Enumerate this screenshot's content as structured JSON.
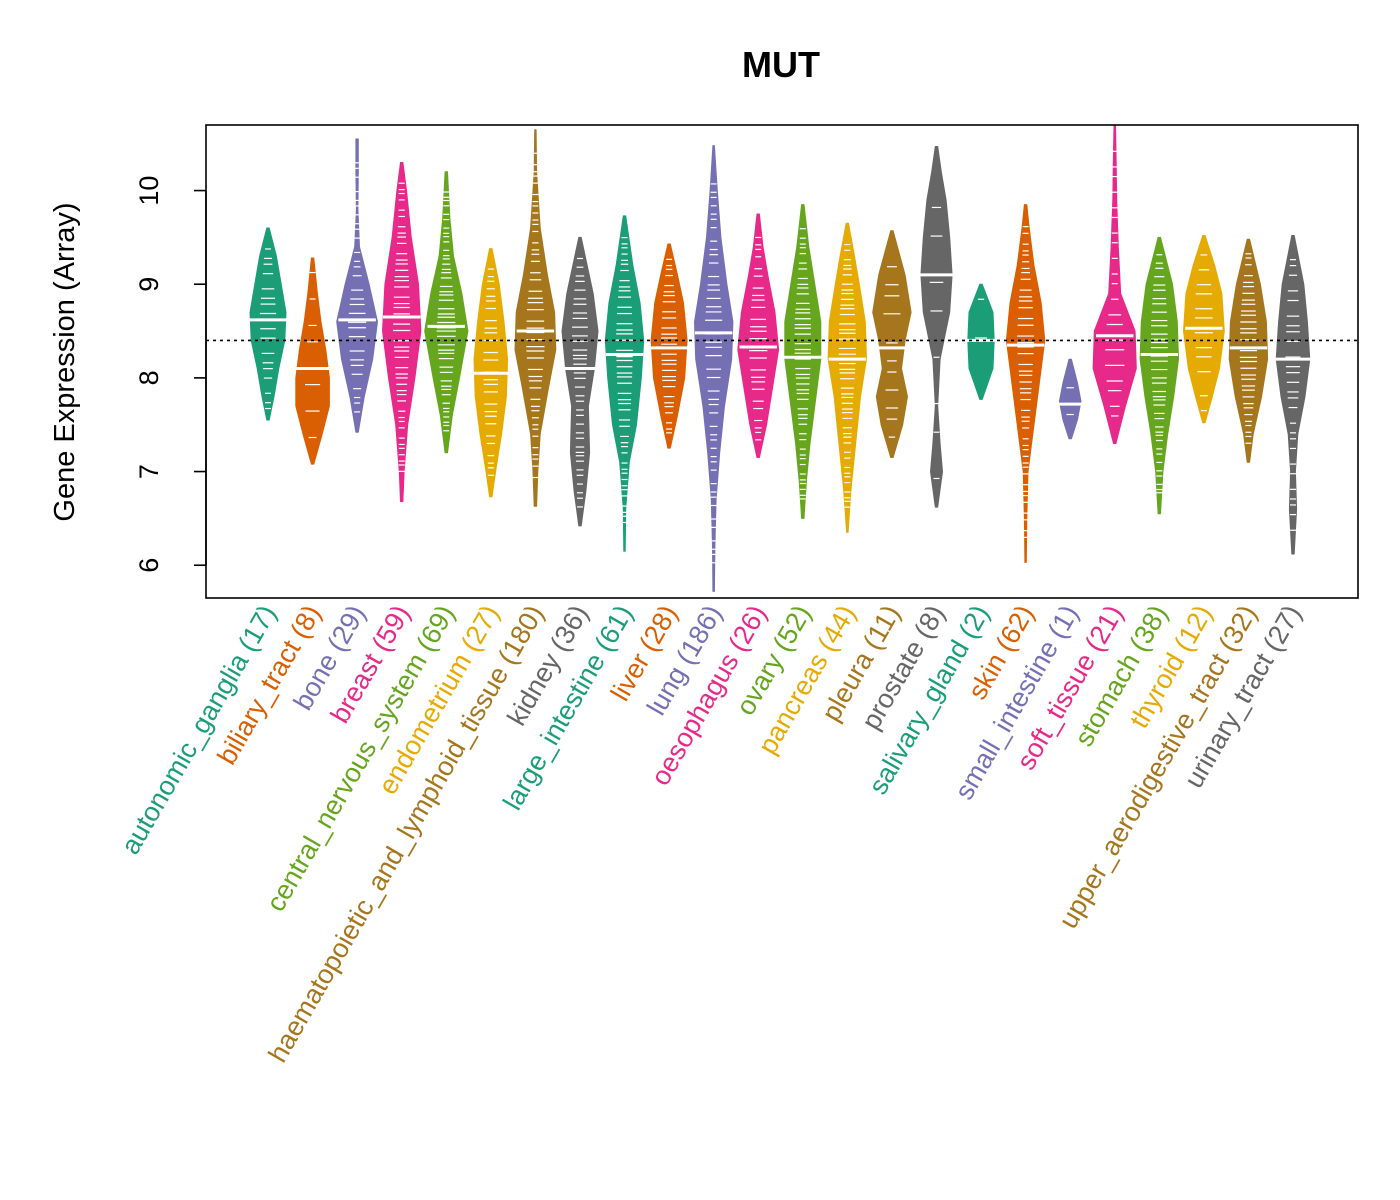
{
  "chart_data": {
    "type": "violin",
    "title": "MUT",
    "xlabel": "",
    "ylabel": "Gene Expression (Array)",
    "ylim": [
      5.65,
      10.7
    ],
    "yticks": [
      6,
      7,
      8,
      9,
      10
    ],
    "reference_line": 8.4,
    "series": [
      {
        "name": "autonomic_ganglia",
        "count": 17,
        "label": "autonomic_ganglia (17)",
        "color": "#1B9E77",
        "median": 8.62,
        "min": 7.55,
        "max": 9.6,
        "density": [
          [
            7.55,
            0.05
          ],
          [
            7.8,
            0.25
          ],
          [
            8.1,
            0.45
          ],
          [
            8.4,
            0.7
          ],
          [
            8.7,
            0.75
          ],
          [
            9.0,
            0.55
          ],
          [
            9.3,
            0.35
          ],
          [
            9.6,
            0.05
          ]
        ]
      },
      {
        "name": "biliary_tract",
        "count": 8,
        "label": "biliary_tract (8)",
        "color": "#D95F02",
        "median": 8.1,
        "min": 7.08,
        "max": 9.28,
        "density": [
          [
            7.08,
            0.05
          ],
          [
            7.4,
            0.4
          ],
          [
            7.7,
            0.7
          ],
          [
            8.0,
            0.7
          ],
          [
            8.3,
            0.55
          ],
          [
            8.6,
            0.35
          ],
          [
            8.9,
            0.2
          ],
          [
            9.28,
            0.05
          ]
        ]
      },
      {
        "name": "bone",
        "count": 29,
        "label": "bone (29)",
        "color": "#7570B3",
        "median": 8.62,
        "min": 7.42,
        "max": 10.55,
        "density": [
          [
            7.42,
            0.05
          ],
          [
            7.8,
            0.3
          ],
          [
            8.2,
            0.65
          ],
          [
            8.6,
            0.85
          ],
          [
            9.0,
            0.5
          ],
          [
            9.4,
            0.1
          ],
          [
            9.8,
            0.03
          ],
          [
            10.2,
            0.05
          ],
          [
            10.55,
            0.05
          ]
        ]
      },
      {
        "name": "breast",
        "count": 59,
        "label": "breast (59)",
        "color": "#E7298A",
        "median": 8.65,
        "min": 6.68,
        "max": 10.3,
        "density": [
          [
            6.68,
            0.05
          ],
          [
            7.0,
            0.1
          ],
          [
            7.5,
            0.25
          ],
          [
            8.0,
            0.55
          ],
          [
            8.5,
            0.8
          ],
          [
            9.0,
            0.7
          ],
          [
            9.5,
            0.4
          ],
          [
            10.0,
            0.2
          ],
          [
            10.3,
            0.05
          ]
        ]
      },
      {
        "name": "central_nervous_system",
        "count": 69,
        "label": "central_nervous_system (69)",
        "color": "#66A61E",
        "median": 8.55,
        "min": 7.2,
        "max": 10.2,
        "density": [
          [
            7.2,
            0.05
          ],
          [
            7.6,
            0.25
          ],
          [
            8.0,
            0.55
          ],
          [
            8.5,
            0.9
          ],
          [
            8.9,
            0.65
          ],
          [
            9.3,
            0.3
          ],
          [
            9.7,
            0.15
          ],
          [
            10.2,
            0.05
          ]
        ]
      },
      {
        "name": "endometrium",
        "count": 27,
        "label": "endometrium (27)",
        "color": "#E6AB02",
        "median": 8.05,
        "min": 6.73,
        "max": 9.38,
        "density": [
          [
            6.73,
            0.05
          ],
          [
            7.0,
            0.2
          ],
          [
            7.4,
            0.45
          ],
          [
            7.8,
            0.65
          ],
          [
            8.2,
            0.7
          ],
          [
            8.6,
            0.55
          ],
          [
            9.0,
            0.35
          ],
          [
            9.38,
            0.05
          ]
        ]
      },
      {
        "name": "haematopoietic_and_lymphoid_tissue",
        "count": 180,
        "label": "haematopoietic_and_lymphoid_tissue (180)",
        "color": "#A6761D",
        "median": 8.5,
        "min": 6.63,
        "max": 10.65,
        "density": [
          [
            6.63,
            0.05
          ],
          [
            7.0,
            0.1
          ],
          [
            7.4,
            0.2
          ],
          [
            7.9,
            0.55
          ],
          [
            8.3,
            0.85
          ],
          [
            8.7,
            0.8
          ],
          [
            9.1,
            0.5
          ],
          [
            9.6,
            0.2
          ],
          [
            10.2,
            0.05
          ],
          [
            10.65,
            0.03
          ]
        ]
      },
      {
        "name": "kidney",
        "count": 36,
        "label": "kidney (36)",
        "color": "#666666",
        "median": 8.1,
        "min": 6.42,
        "max": 9.5,
        "density": [
          [
            6.42,
            0.05
          ],
          [
            6.8,
            0.25
          ],
          [
            7.2,
            0.4
          ],
          [
            7.7,
            0.35
          ],
          [
            8.1,
            0.6
          ],
          [
            8.5,
            0.75
          ],
          [
            8.9,
            0.55
          ],
          [
            9.2,
            0.3
          ],
          [
            9.5,
            0.05
          ]
        ]
      },
      {
        "name": "large_intestine",
        "count": 61,
        "label": "large_intestine (61)",
        "color": "#1B9E77",
        "median": 8.25,
        "min": 6.15,
        "max": 9.73,
        "density": [
          [
            6.15,
            0.03
          ],
          [
            6.6,
            0.05
          ],
          [
            7.1,
            0.2
          ],
          [
            7.5,
            0.5
          ],
          [
            8.0,
            0.7
          ],
          [
            8.4,
            0.8
          ],
          [
            8.8,
            0.65
          ],
          [
            9.2,
            0.35
          ],
          [
            9.73,
            0.05
          ]
        ]
      },
      {
        "name": "liver",
        "count": 28,
        "label": "liver (28)",
        "color": "#D95F02",
        "median": 8.32,
        "min": 7.25,
        "max": 9.43,
        "density": [
          [
            7.25,
            0.05
          ],
          [
            7.6,
            0.35
          ],
          [
            8.0,
            0.65
          ],
          [
            8.4,
            0.75
          ],
          [
            8.8,
            0.6
          ],
          [
            9.1,
            0.35
          ],
          [
            9.43,
            0.05
          ]
        ]
      },
      {
        "name": "lung",
        "count": 186,
        "label": "lung (186)",
        "color": "#7570B3",
        "median": 8.48,
        "min": 5.72,
        "max": 10.48,
        "density": [
          [
            5.72,
            0.03
          ],
          [
            6.2,
            0.05
          ],
          [
            6.7,
            0.1
          ],
          [
            7.2,
            0.25
          ],
          [
            7.7,
            0.45
          ],
          [
            8.2,
            0.75
          ],
          [
            8.6,
            0.8
          ],
          [
            9.0,
            0.55
          ],
          [
            9.5,
            0.3
          ],
          [
            10.0,
            0.15
          ],
          [
            10.48,
            0.03
          ]
        ]
      },
      {
        "name": "oesophagus",
        "count": 26,
        "label": "oesophagus (26)",
        "color": "#E7298A",
        "median": 8.33,
        "min": 7.15,
        "max": 9.75,
        "density": [
          [
            7.15,
            0.05
          ],
          [
            7.5,
            0.35
          ],
          [
            7.9,
            0.6
          ],
          [
            8.3,
            0.85
          ],
          [
            8.7,
            0.7
          ],
          [
            9.1,
            0.4
          ],
          [
            9.4,
            0.2
          ],
          [
            9.75,
            0.05
          ]
        ]
      },
      {
        "name": "ovary",
        "count": 52,
        "label": "ovary (52)",
        "color": "#66A61E",
        "median": 8.22,
        "min": 6.5,
        "max": 9.85,
        "density": [
          [
            6.5,
            0.05
          ],
          [
            6.9,
            0.15
          ],
          [
            7.3,
            0.3
          ],
          [
            7.8,
            0.55
          ],
          [
            8.2,
            0.75
          ],
          [
            8.6,
            0.75
          ],
          [
            9.0,
            0.5
          ],
          [
            9.4,
            0.25
          ],
          [
            9.85,
            0.05
          ]
        ]
      },
      {
        "name": "pancreas",
        "count": 44,
        "label": "pancreas (44)",
        "color": "#E6AB02",
        "median": 8.2,
        "min": 6.35,
        "max": 9.65,
        "density": [
          [
            6.35,
            0.03
          ],
          [
            6.8,
            0.15
          ],
          [
            7.3,
            0.35
          ],
          [
            7.8,
            0.55
          ],
          [
            8.2,
            0.8
          ],
          [
            8.6,
            0.75
          ],
          [
            9.0,
            0.5
          ],
          [
            9.3,
            0.3
          ],
          [
            9.65,
            0.05
          ]
        ]
      },
      {
        "name": "pleura",
        "count": 11,
        "label": "pleura (11)",
        "color": "#A6761D",
        "median": 8.32,
        "min": 7.15,
        "max": 9.57,
        "density": [
          [
            7.15,
            0.05
          ],
          [
            7.5,
            0.45
          ],
          [
            7.8,
            0.65
          ],
          [
            8.1,
            0.4
          ],
          [
            8.4,
            0.55
          ],
          [
            8.7,
            0.8
          ],
          [
            9.1,
            0.55
          ],
          [
            9.57,
            0.05
          ]
        ]
      },
      {
        "name": "prostate",
        "count": 8,
        "label": "prostate (8)",
        "color": "#666666",
        "median": 9.1,
        "min": 6.62,
        "max": 10.47,
        "density": [
          [
            6.62,
            0.05
          ],
          [
            7.0,
            0.25
          ],
          [
            7.3,
            0.15
          ],
          [
            7.7,
            0.05
          ],
          [
            8.2,
            0.15
          ],
          [
            8.7,
            0.55
          ],
          [
            9.1,
            0.65
          ],
          [
            9.5,
            0.55
          ],
          [
            9.9,
            0.4
          ],
          [
            10.2,
            0.2
          ],
          [
            10.47,
            0.05
          ]
        ]
      },
      {
        "name": "salivary_gland",
        "count": 2,
        "label": "salivary_gland (2)",
        "color": "#1B9E77",
        "median": 8.4,
        "min": 7.77,
        "max": 9.0,
        "density": [
          [
            7.77,
            0.05
          ],
          [
            8.1,
            0.5
          ],
          [
            8.4,
            0.55
          ],
          [
            8.7,
            0.5
          ],
          [
            9.0,
            0.05
          ]
        ]
      },
      {
        "name": "skin",
        "count": 62,
        "label": "skin (62)",
        "color": "#D95F02",
        "median": 8.35,
        "min": 6.03,
        "max": 9.85,
        "density": [
          [
            6.03,
            0.03
          ],
          [
            6.5,
            0.05
          ],
          [
            7.0,
            0.1
          ],
          [
            7.5,
            0.35
          ],
          [
            8.0,
            0.6
          ],
          [
            8.4,
            0.8
          ],
          [
            8.8,
            0.65
          ],
          [
            9.2,
            0.35
          ],
          [
            9.6,
            0.15
          ],
          [
            9.85,
            0.05
          ]
        ]
      },
      {
        "name": "small_intestine",
        "count": 1,
        "label": "small_intestine (1)",
        "color": "#7570B3",
        "median": 7.72,
        "min": 7.35,
        "max": 8.2,
        "density": [
          [
            7.35,
            0.05
          ],
          [
            7.55,
            0.3
          ],
          [
            7.75,
            0.45
          ],
          [
            7.95,
            0.3
          ],
          [
            8.2,
            0.05
          ]
        ]
      },
      {
        "name": "soft_tissue",
        "count": 21,
        "label": "soft_tissue (21)",
        "color": "#E7298A",
        "median": 8.45,
        "min": 7.3,
        "max": 10.7,
        "density": [
          [
            7.3,
            0.05
          ],
          [
            7.7,
            0.45
          ],
          [
            8.1,
            0.9
          ],
          [
            8.5,
            0.85
          ],
          [
            8.9,
            0.25
          ],
          [
            9.4,
            0.15
          ],
          [
            9.9,
            0.08
          ],
          [
            10.3,
            0.06
          ],
          [
            10.7,
            0.03
          ]
        ]
      },
      {
        "name": "stomach",
        "count": 38,
        "label": "stomach (38)",
        "color": "#66A61E",
        "median": 8.25,
        "min": 6.55,
        "max": 9.5,
        "density": [
          [
            6.55,
            0.05
          ],
          [
            7.0,
            0.15
          ],
          [
            7.4,
            0.35
          ],
          [
            7.8,
            0.6
          ],
          [
            8.2,
            0.8
          ],
          [
            8.6,
            0.75
          ],
          [
            9.0,
            0.55
          ],
          [
            9.5,
            0.05
          ]
        ]
      },
      {
        "name": "thyroid",
        "count": 12,
        "label": "thyroid (12)",
        "color": "#E6AB02",
        "median": 8.53,
        "min": 7.52,
        "max": 9.52,
        "density": [
          [
            7.52,
            0.05
          ],
          [
            7.8,
            0.35
          ],
          [
            8.1,
            0.65
          ],
          [
            8.5,
            0.85
          ],
          [
            8.9,
            0.75
          ],
          [
            9.2,
            0.45
          ],
          [
            9.52,
            0.05
          ]
        ]
      },
      {
        "name": "upper_aerodigestive_tract",
        "count": 32,
        "label": "upper_aerodigestive_tract (32)",
        "color": "#A6761D",
        "median": 8.32,
        "min": 7.1,
        "max": 9.48,
        "density": [
          [
            7.1,
            0.05
          ],
          [
            7.4,
            0.2
          ],
          [
            7.8,
            0.55
          ],
          [
            8.2,
            0.8
          ],
          [
            8.6,
            0.75
          ],
          [
            9.0,
            0.5
          ],
          [
            9.48,
            0.05
          ]
        ]
      },
      {
        "name": "urinary_tract",
        "count": 27,
        "label": "urinary_tract (27)",
        "color": "#666666",
        "median": 8.2,
        "min": 6.12,
        "max": 9.52,
        "density": [
          [
            6.12,
            0.05
          ],
          [
            6.6,
            0.15
          ],
          [
            7.0,
            0.1
          ],
          [
            7.4,
            0.2
          ],
          [
            7.8,
            0.5
          ],
          [
            8.2,
            0.7
          ],
          [
            8.6,
            0.6
          ],
          [
            9.0,
            0.45
          ],
          [
            9.52,
            0.05
          ]
        ]
      }
    ]
  }
}
